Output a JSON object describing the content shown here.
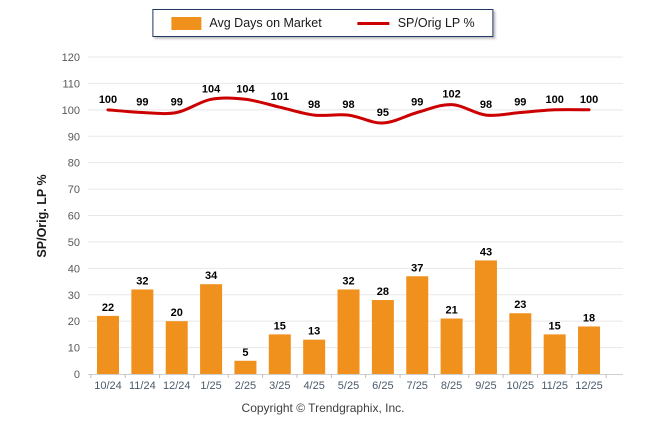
{
  "legend": {
    "bar_label": "Avg Days on Market",
    "line_label": "SP/Orig LP %"
  },
  "chart_data": {
    "type": "bar+line",
    "title": "",
    "categories": [
      "10/24",
      "11/24",
      "12/24",
      "1/25",
      "2/25",
      "3/25",
      "4/25",
      "5/25",
      "6/25",
      "7/25",
      "8/25",
      "9/25",
      "10/25",
      "11/25",
      "12/25"
    ],
    "series": [
      {
        "name": "Avg Days on Market",
        "type": "bar",
        "color": "#F0911E",
        "values": [
          22,
          32,
          20,
          34,
          5,
          15,
          13,
          32,
          28,
          37,
          21,
          43,
          23,
          15,
          18
        ]
      },
      {
        "name": "SP/Orig LP %",
        "type": "line",
        "color": "#CC0000",
        "values": [
          100,
          99,
          99,
          104,
          104,
          101,
          98,
          98,
          95,
          99,
          102,
          98,
          99,
          100,
          100
        ]
      }
    ],
    "xlabel": "",
    "ylabel": "SP/Orig. LP %",
    "ylim": [
      0,
      120
    ],
    "ytick_step": 10,
    "grid": "horizontal",
    "legend_position": "top-center",
    "data_labels": true
  },
  "footer": {
    "copyright": "Copyright © Trendgraphix, Inc."
  },
  "colors": {
    "grid": "#E8E8E8",
    "axis_line": "#D0D0D0",
    "tick_mark": "#BFBFBF",
    "ytick_text": "#595959",
    "xtick_text": "#4A5A6A",
    "data_label_text": "#000000",
    "legend_border": "#1F3864",
    "ylabel_text": "#1a1a1a"
  }
}
